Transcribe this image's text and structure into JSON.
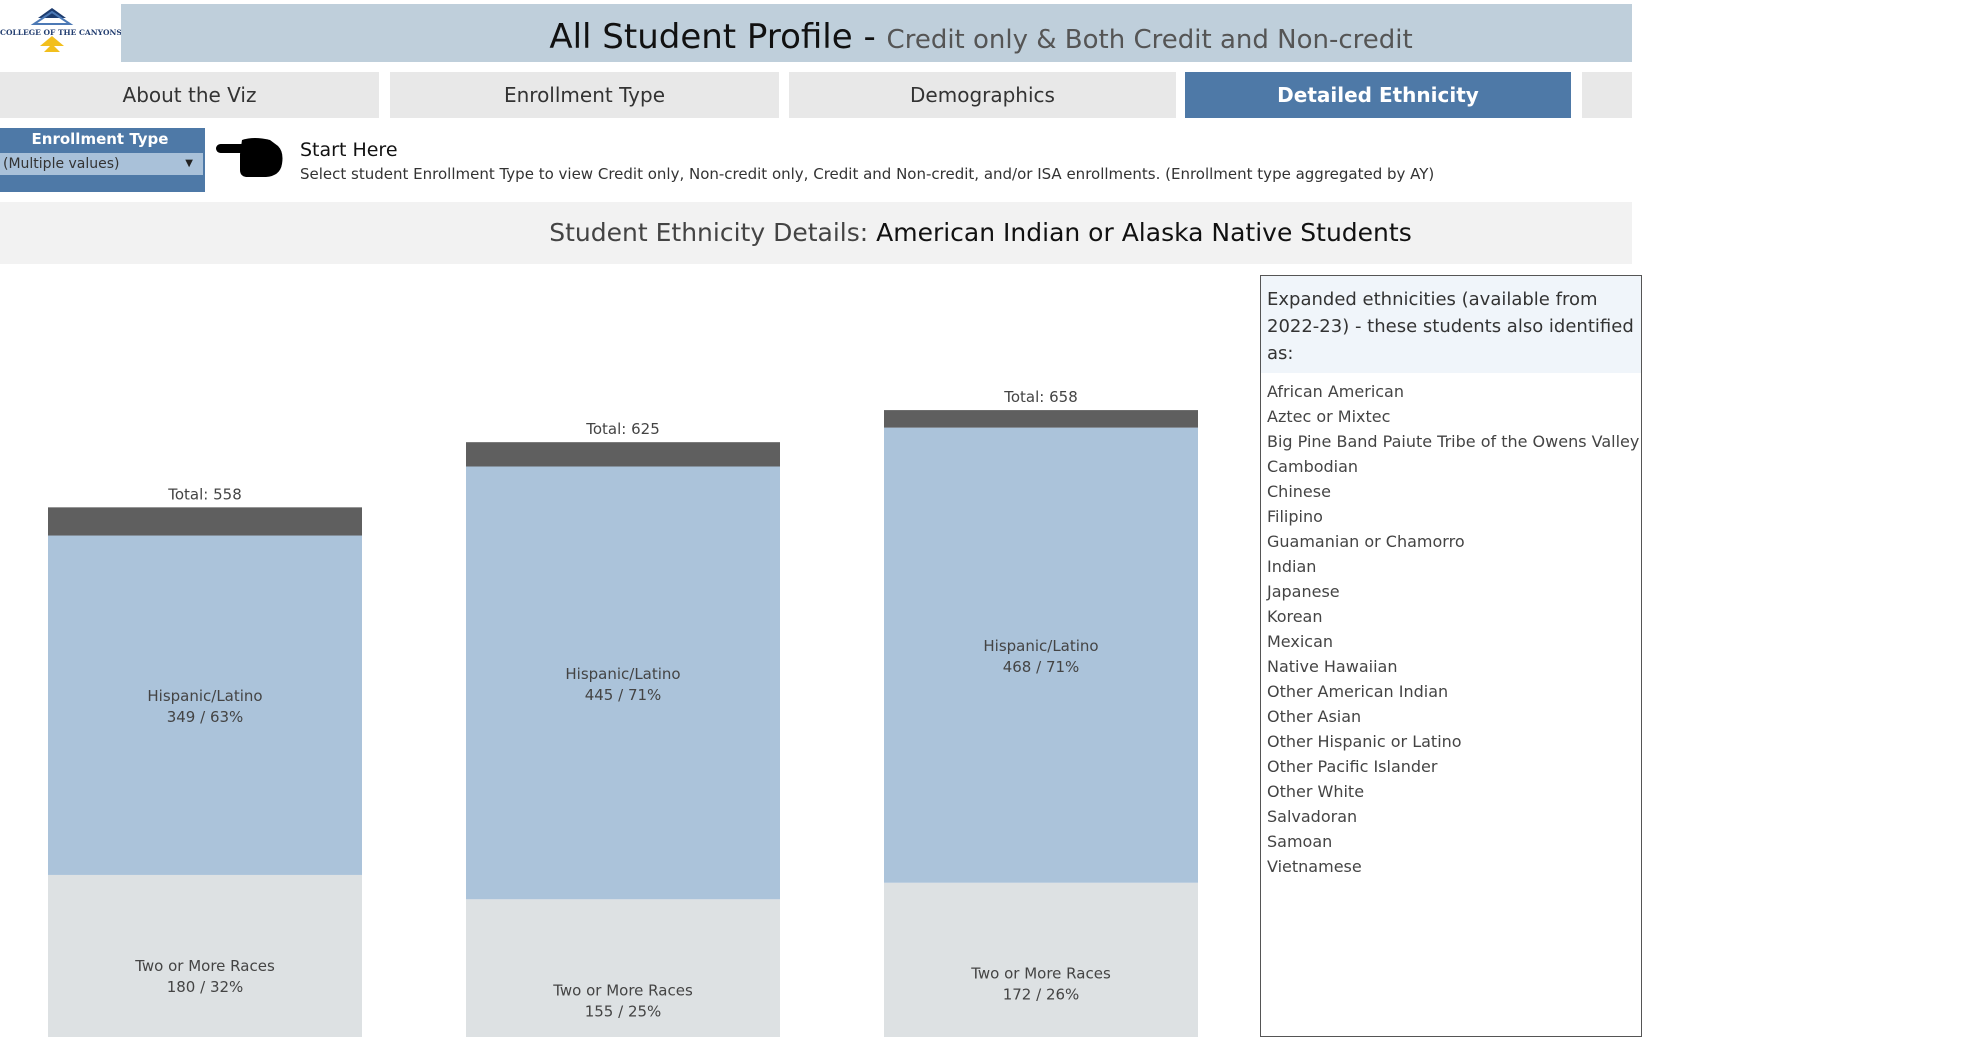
{
  "logo": {
    "text": "COLLEGE OF THE CANYONS"
  },
  "header": {
    "title": "All Student Profile - ",
    "subtitle": "Credit only & Both Credit and Non-credit"
  },
  "tabs": [
    {
      "label": "About the Viz"
    },
    {
      "label": "Enrollment Type"
    },
    {
      "label": "Demographics"
    },
    {
      "label": "Detailed Ethnicity"
    },
    {
      "label": ""
    }
  ],
  "filter": {
    "label": "Enrollment Type",
    "value": "(Multiple values)"
  },
  "start": {
    "title": "Start Here",
    "text": "Select student Enrollment Type to view Credit only, Non-credit only, Credit and Non-credit, and/or ISA enrollments. (Enrollment type aggregated by AY)"
  },
  "section": {
    "lead": "Student Ethnicity Details: ",
    "highlight": "American Indian or Alaska Native Students"
  },
  "chart_data": {
    "type": "bar",
    "stacked": true,
    "totals_labels": [
      "Total: 558",
      "Total: 625",
      "Total: 658"
    ],
    "totals": [
      558,
      625,
      658
    ],
    "series": [
      {
        "name": "Two or More Races",
        "values": [
          180,
          155,
          172
        ],
        "percent_labels": [
          "32%",
          "25%",
          "26%"
        ],
        "color": "#dde1e3"
      },
      {
        "name": "Hispanic/Latino",
        "values": [
          349,
          445,
          468
        ],
        "percent_labels": [
          "63%",
          "71%",
          "71%"
        ],
        "color": "#abc3da"
      },
      {
        "name": "",
        "values": [
          29,
          25,
          18
        ],
        "color": "#5f5f5f"
      }
    ]
  },
  "panel": {
    "heading": "Expanded ethnicities (available from 2022-23) - these students also identified as:",
    "items": [
      "African American",
      "Aztec or Mixtec",
      "Big Pine Band Paiute Tribe of the Owens Valley",
      "Cambodian",
      "Chinese",
      "Filipino",
      "Guamanian or Chamorro",
      "Indian",
      "Japanese",
      "Korean",
      "Mexican",
      "Native Hawaiian",
      "Other American Indian",
      "Other Asian",
      "Other Hispanic or Latino",
      "Other Pacific Islander",
      "Other White",
      "Salvadoran",
      "Samoan",
      "Vietnamese"
    ]
  }
}
